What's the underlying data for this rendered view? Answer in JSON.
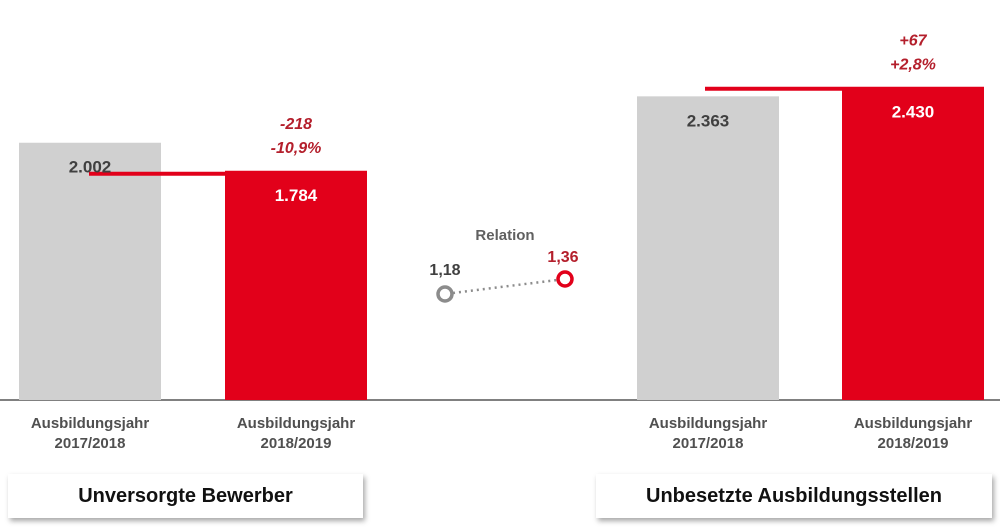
{
  "colors": {
    "grey": "#d0d0d0",
    "red": "#e2001a",
    "dark_red": "#b41f2c",
    "text_dark": "#404040",
    "baseline": "#808080"
  },
  "chart_data": [
    {
      "type": "bar",
      "categories": [
        "Ausbildungsjahr\n2017/2018",
        "Ausbildungsjahr\n2018/2019"
      ],
      "values": [
        2002,
        1784
      ],
      "value_labels": [
        "2.002",
        "1.784"
      ],
      "change_labels": [
        "-218",
        "-10,9%"
      ],
      "caption": "Unversorgte Bewerber"
    },
    {
      "type": "bar",
      "categories": [
        "Ausbildungsjahr\n2017/2018",
        "Ausbildungsjahr\n2018/2019"
      ],
      "values": [
        2363,
        2430
      ],
      "value_labels": [
        "2.363",
        "2.430"
      ],
      "change_labels": [
        "+67",
        "+2,8%"
      ],
      "caption": "Unbesetzte Ausbildungsstellen"
    },
    {
      "type": "line",
      "title": "Relation",
      "values": [
        1.18,
        1.36
      ],
      "value_labels": [
        "1,18",
        "1,36"
      ]
    }
  ]
}
